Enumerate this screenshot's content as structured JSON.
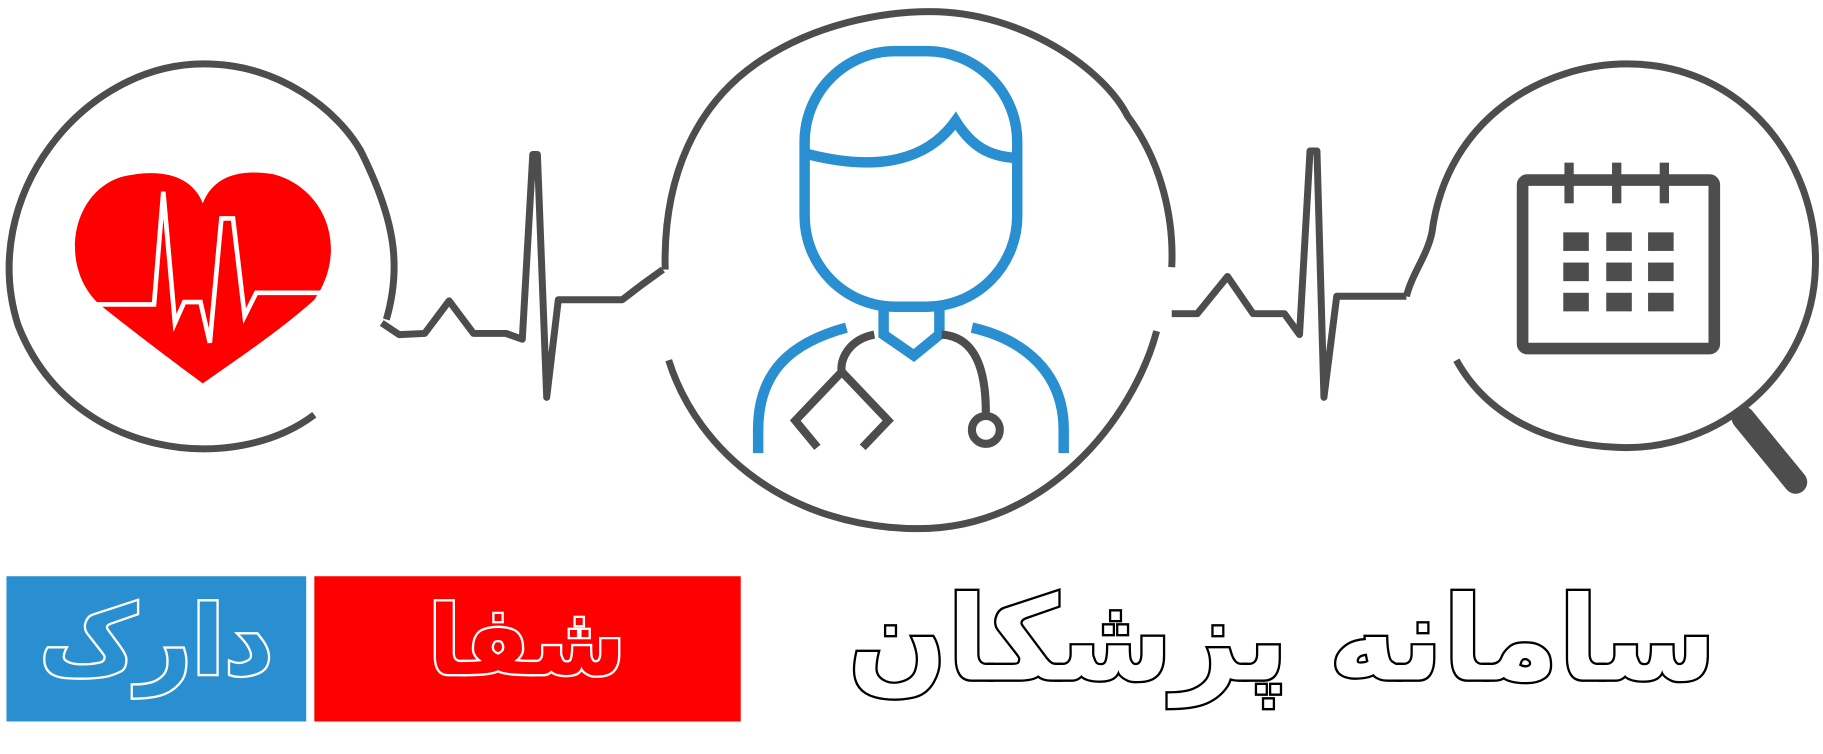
{
  "logo": {
    "title": "سامانه پزشکان",
    "brand_red": "شفا",
    "brand_blue": "دارک"
  }
}
